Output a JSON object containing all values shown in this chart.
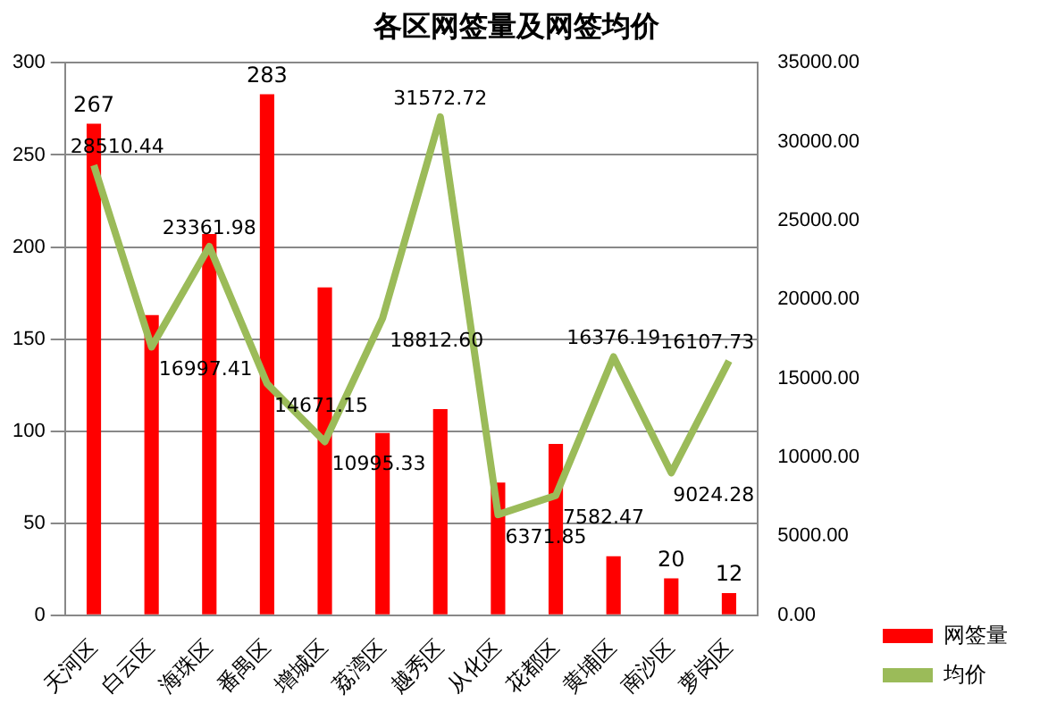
{
  "chart_data": {
    "type": "bar",
    "title": "各区网签量及网签均价",
    "categories": [
      "天河区",
      "白云区",
      "海珠区",
      "番禺区",
      "增城区",
      "荔湾区",
      "越秀区",
      "从化区",
      "花都区",
      "黄埔区",
      "南沙区",
      "萝岗区"
    ],
    "series": [
      {
        "name": "网签量",
        "type": "bar",
        "color": "#ff0000",
        "values": [
          267,
          163,
          207,
          283,
          178,
          99,
          112,
          72,
          93,
          32,
          20,
          12
        ],
        "value_labels": [
          "267",
          null,
          null,
          "283",
          null,
          null,
          null,
          null,
          null,
          null,
          "20",
          "12"
        ]
      },
      {
        "name": "均价",
        "type": "line",
        "axis": "y2",
        "color": "#9bbb59",
        "values": [
          28510.44,
          16997.41,
          23361.98,
          14671.15,
          10995.33,
          18812.6,
          31572.72,
          6371.85,
          7582.47,
          16376.19,
          9024.28,
          16107.73
        ],
        "value_labels": [
          "28510.44",
          "16997.41",
          "23361.98",
          "14671.15",
          "10995.33",
          "18812.60",
          "31572.72",
          "6371.85",
          "7582.47",
          "16376.19",
          "9024.28",
          "16107.73"
        ]
      }
    ],
    "ylim": [
      0,
      300
    ],
    "yticks": [
      0,
      50,
      100,
      150,
      200,
      250,
      300
    ],
    "y2lim": [
      0,
      35000
    ],
    "y2ticks": [
      {
        "value": 0,
        "label": "0.00"
      },
      {
        "value": 5000,
        "label": "5000.00"
      },
      {
        "value": 10000,
        "label": "10000.00"
      },
      {
        "value": 15000,
        "label": "15000.00"
      },
      {
        "value": 20000,
        "label": "20000.00"
      },
      {
        "value": 25000,
        "label": "25000.00"
      },
      {
        "value": 30000,
        "label": "30000.00"
      },
      {
        "value": 35000,
        "label": "35000.00"
      }
    ],
    "grid": "y",
    "legend": "bottom right",
    "marker": "none"
  }
}
